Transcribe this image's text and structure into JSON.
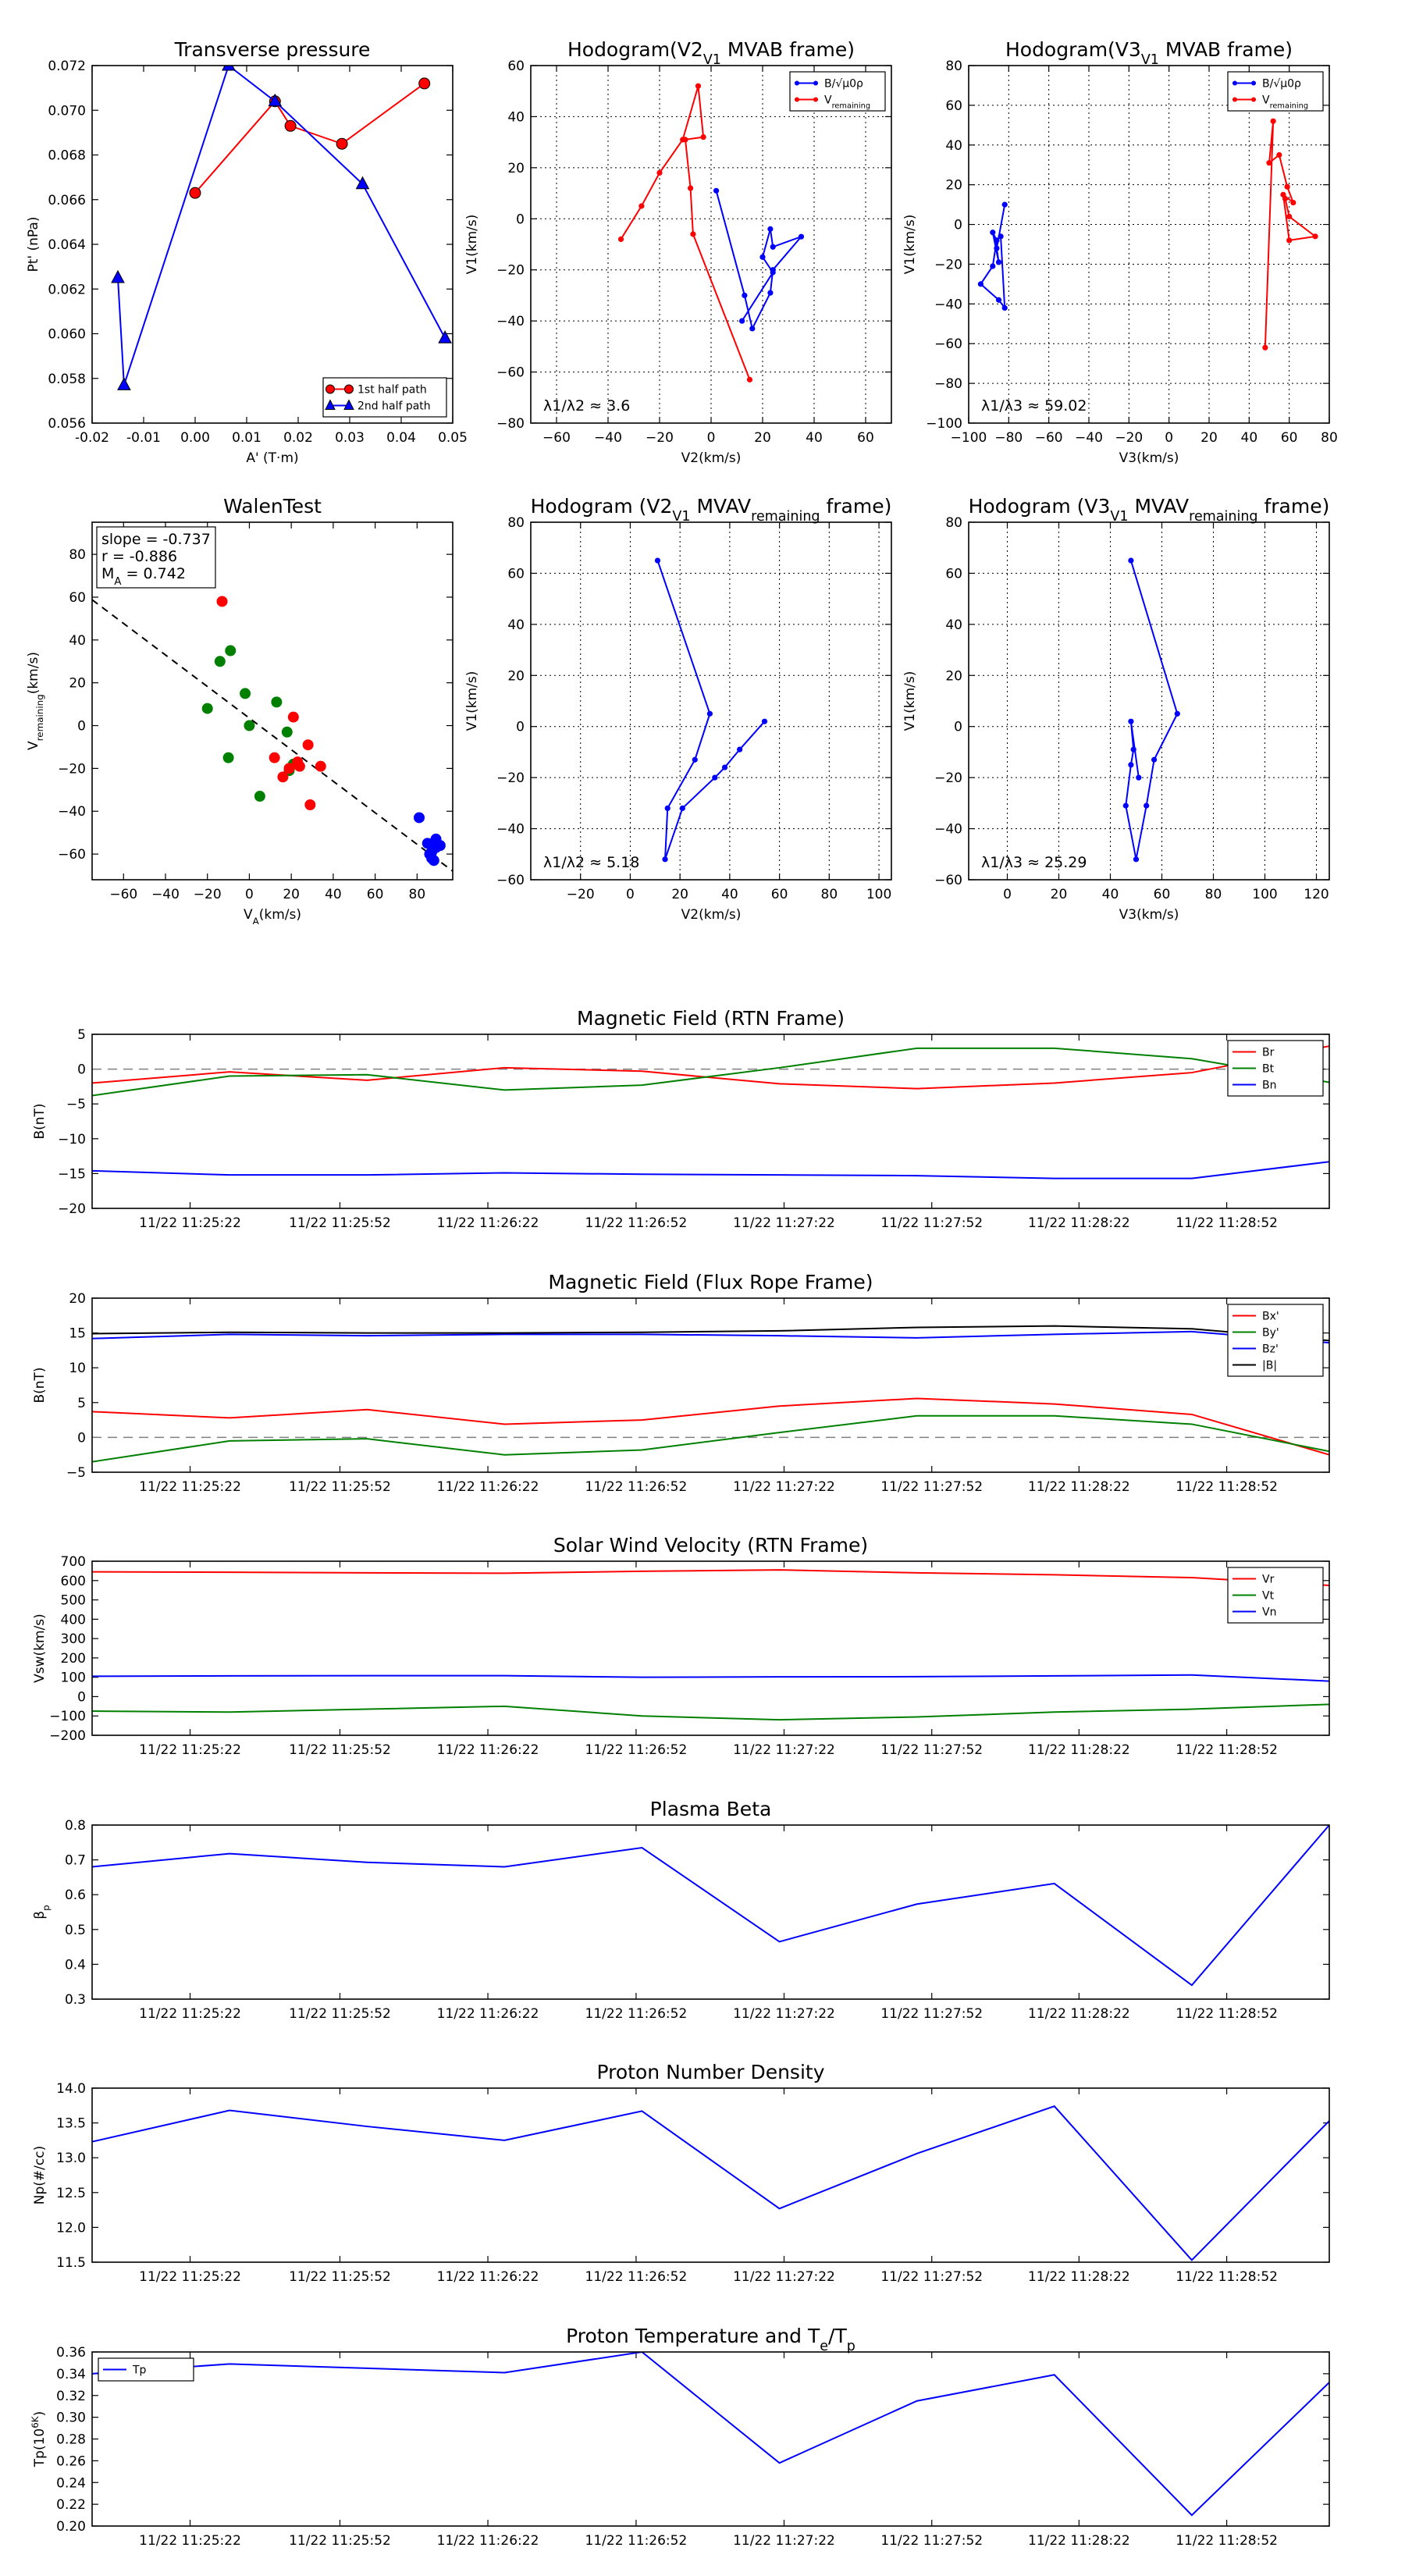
{
  "figure": {
    "background": "#ffffff"
  },
  "chart_data": [
    {
      "id": "transverse-pressure",
      "type": "line",
      "title": "Transverse pressure",
      "xlabel": "A' (T·m)",
      "ylabel": "Pt' (nPa)",
      "xlim": [
        -0.02,
        0.05
      ],
      "ylim": [
        0.056,
        0.072
      ],
      "xticks": [
        -0.02,
        -0.01,
        0.0,
        0.01,
        0.02,
        0.03,
        0.04,
        0.05
      ],
      "xticklabels": [
        "-0.02",
        "-0.01",
        "0.00",
        "0.01",
        "0.02",
        "0.03",
        "0.04",
        "0.05"
      ],
      "yticks": [
        0.056,
        0.058,
        0.06,
        0.062,
        0.064,
        0.066,
        0.068,
        0.07,
        0.072
      ],
      "yticklabels": [
        "0.056",
        "0.058",
        "0.060",
        "0.062",
        "0.064",
        "0.066",
        "0.068",
        "0.070",
        "0.072"
      ],
      "grid": false,
      "legend": "lower-right",
      "series": [
        {
          "name": "1st half path",
          "color": "#ff0000",
          "marker": "circle",
          "x": [
            0.0,
            0.0155,
            0.0185,
            0.0285,
            0.0445
          ],
          "y": [
            0.0663,
            0.0704,
            0.0693,
            0.0685,
            0.0712
          ]
        },
        {
          "name": "2nd half path",
          "color": "#0000ff",
          "marker": "triangle",
          "x": [
            -0.015,
            -0.0138,
            0.0065,
            0.0155,
            0.0325,
            0.0485
          ],
          "y": [
            0.0625,
            0.0577,
            0.072,
            0.0704,
            0.0667,
            0.0598
          ]
        }
      ]
    },
    {
      "id": "hodogram-v2-v1-mvab",
      "type": "line",
      "title": "Hodogram(V2_V1 MVAB frame)",
      "xlabel": "V2(km/s)",
      "ylabel": "V1(km/s)",
      "xlim": [
        -70,
        70
      ],
      "ylim": [
        -80,
        60
      ],
      "xticks": [
        -60,
        -40,
        -20,
        0,
        20,
        40,
        60
      ],
      "xticklabels": [
        "−60",
        "−40",
        "−20",
        "0",
        "20",
        "40",
        "60"
      ],
      "yticks": [
        -80,
        -60,
        -40,
        -20,
        0,
        20,
        40,
        60
      ],
      "yticklabels": [
        "−80",
        "−60",
        "−40",
        "−20",
        "0",
        "20",
        "40",
        "60"
      ],
      "grid": true,
      "legend": "top-right",
      "annotation": "λ1/λ2 ≈ 3.6",
      "series": [
        {
          "name": "B/√μ0ρ",
          "color": "#0000ff",
          "marker": "dot",
          "x": [
            2,
            13,
            16,
            23,
            24,
            35,
            24,
            23,
            20,
            24,
            12
          ],
          "y": [
            11,
            -30,
            -43,
            -29,
            -20,
            -7,
            -11,
            -4,
            -15,
            -21,
            -40
          ]
        },
        {
          "name": "V_remaining",
          "color": "#ff0000",
          "marker": "dot",
          "x": [
            -35,
            -27,
            -20,
            -11,
            -5,
            -3,
            -10,
            -8,
            -7,
            15
          ],
          "y": [
            -8,
            5,
            18,
            31,
            52,
            32,
            31,
            12,
            -6,
            -63
          ]
        }
      ]
    },
    {
      "id": "hodogram-v3-v1-mvab",
      "type": "line",
      "title": "Hodogram(V3_V1 MVAB frame)",
      "xlabel": "V3(km/s)",
      "ylabel": "V1(km/s)",
      "xlim": [
        -100,
        80
      ],
      "ylim": [
        -100,
        80
      ],
      "xticks": [
        -100,
        -80,
        -60,
        -40,
        -20,
        0,
        20,
        40,
        60,
        80
      ],
      "xticklabels": [
        "−100",
        "−80",
        "−60",
        "−40",
        "−20",
        "0",
        "20",
        "40",
        "60",
        "80"
      ],
      "yticks": [
        -100,
        -80,
        -60,
        -40,
        -20,
        0,
        20,
        40,
        60,
        80
      ],
      "yticklabels": [
        "−100",
        "−80",
        "−60",
        "−40",
        "−20",
        "0",
        "20",
        "40",
        "60",
        "80"
      ],
      "grid": true,
      "legend": "top-right",
      "annotation": "λ1/λ3 ≈ 59.02",
      "series": [
        {
          "name": "B/√μ0ρ",
          "color": "#0000ff",
          "marker": "dot",
          "x": [
            -82,
            -86,
            -85,
            -88,
            -86,
            -88,
            -94,
            -85,
            -82,
            -84
          ],
          "y": [
            10,
            -12,
            -19,
            -4,
            -8,
            -21,
            -30,
            -38,
            -42,
            -6
          ]
        },
        {
          "name": "V_remaining",
          "color": "#ff0000",
          "marker": "dot",
          "x": [
            48,
            52,
            50,
            55,
            59,
            62,
            57,
            60,
            73,
            60,
            58
          ],
          "y": [
            -62,
            52,
            31,
            35,
            19,
            11,
            15,
            -8,
            -6,
            4,
            13
          ]
        }
      ]
    },
    {
      "id": "walen-test",
      "type": "scatter",
      "title": "WalenTest",
      "xlabel": "V_A(km/s)",
      "ylabel": "V_remaining(km/s)",
      "xlim": [
        -75,
        97
      ],
      "ylim": [
        -72,
        95
      ],
      "xticks": [
        -60,
        -40,
        -20,
        0,
        20,
        40,
        60,
        80
      ],
      "xticklabels": [
        "−60",
        "−40",
        "−20",
        "0",
        "20",
        "40",
        "60",
        "80"
      ],
      "yticks": [
        -60,
        -40,
        -20,
        0,
        20,
        40,
        60,
        80
      ],
      "yticklabels": [
        "−60",
        "−40",
        "−20",
        "0",
        "20",
        "40",
        "60",
        "80"
      ],
      "grid": false,
      "legend": "none",
      "stats": [
        "slope = -0.737",
        "r = -0.886",
        "M_A = 0.742"
      ],
      "fit": {
        "slope": -0.737,
        "intercept": 3.5,
        "color": "#000000",
        "style": "dashed"
      },
      "series": [
        {
          "name": "",
          "color": "#008000",
          "x": [
            -20,
            -14,
            -9,
            -2,
            0,
            5,
            13,
            18,
            19,
            21,
            -10
          ],
          "y": [
            8,
            30,
            35,
            15,
            0,
            -33,
            11,
            -3,
            -21,
            -18,
            -15
          ]
        },
        {
          "name": "",
          "color": "#ff0000",
          "x": [
            -13,
            12,
            16,
            19,
            21,
            23,
            24,
            28,
            29,
            34
          ],
          "y": [
            58,
            -15,
            -24,
            -20,
            4,
            -17,
            -19,
            -9,
            -37,
            -19
          ]
        },
        {
          "name": "",
          "color": "#0000ff",
          "x": [
            81,
            85,
            87,
            89,
            86,
            87,
            88,
            91,
            89
          ],
          "y": [
            -43,
            -55,
            -59,
            -53,
            -60,
            -62,
            -63,
            -56,
            -57
          ]
        }
      ]
    },
    {
      "id": "hodogram-v2-v1-mvav",
      "type": "line",
      "title": "Hodogram (V2_V1 MVAV_remaining frame)",
      "xlabel": "V2(km/s)",
      "ylabel": "V1(km/s)",
      "xlim": [
        -40,
        105
      ],
      "ylim": [
        -60,
        80
      ],
      "xticks": [
        -20,
        0,
        20,
        40,
        60,
        80,
        100
      ],
      "xticklabels": [
        "−20",
        "0",
        "20",
        "40",
        "60",
        "80",
        "100"
      ],
      "yticks": [
        -60,
        -40,
        -20,
        0,
        20,
        40,
        60,
        80
      ],
      "yticklabels": [
        "−60",
        "−40",
        "−20",
        "0",
        "20",
        "40",
        "60",
        "80"
      ],
      "grid": true,
      "legend": "none",
      "annotation": "λ1/λ2 ≈ 5.18",
      "series": [
        {
          "name": "",
          "color": "#0000ff",
          "marker": "dot",
          "x": [
            11,
            32,
            26,
            15,
            14,
            21,
            34,
            38,
            44,
            54
          ],
          "y": [
            65,
            5,
            -13,
            -32,
            -52,
            -32,
            -20,
            -16,
            -9,
            2
          ]
        }
      ]
    },
    {
      "id": "hodogram-v3-v1-mvav",
      "type": "line",
      "title": "Hodogram (V3_V1 MVAV_remaining frame)",
      "xlabel": "V3(km/s)",
      "ylabel": "V1(km/s)",
      "xlim": [
        -15,
        125
      ],
      "ylim": [
        -60,
        80
      ],
      "xticks": [
        0,
        20,
        40,
        60,
        80,
        100,
        120
      ],
      "xticklabels": [
        "0",
        "20",
        "40",
        "60",
        "80",
        "100",
        "120"
      ],
      "yticks": [
        -60,
        -40,
        -20,
        0,
        20,
        40,
        60,
        80
      ],
      "yticklabels": [
        "−60",
        "−40",
        "−20",
        "0",
        "20",
        "40",
        "60",
        "80"
      ],
      "grid": true,
      "legend": "none",
      "annotation": "λ1/λ3 ≈ 25.29",
      "series": [
        {
          "name": "",
          "color": "#0000ff",
          "marker": "dot",
          "x": [
            48,
            66,
            57,
            54,
            50,
            46,
            48,
            49,
            48,
            51
          ],
          "y": [
            65,
            5,
            -13,
            -31,
            -52,
            -31,
            -15,
            -9,
            2,
            -20
          ]
        }
      ]
    },
    {
      "id": "b-rtn",
      "type": "line",
      "title": "Magnetic Field (RTN Frame)",
      "xlabel": "",
      "ylabel": "B(nT)",
      "time_labels": [
        "11/22 11:25:22",
        "11/22 11:25:52",
        "11/22 11:26:22",
        "11/22 11:26:52",
        "11/22 11:27:22",
        "11/22 11:27:52",
        "11/22 11:28:22",
        "11/22 11:28:52"
      ],
      "ylim": [
        -20,
        5
      ],
      "yticks": [
        -20,
        -15,
        -10,
        -5,
        0,
        5
      ],
      "yticklabels": [
        "−20",
        "−15",
        "−10",
        "−5",
        "0",
        "5"
      ],
      "zero_line": true,
      "grid": false,
      "legend": "top-right",
      "series": [
        {
          "name": "Br",
          "color": "#ff0000",
          "values": [
            -2,
            -0.4,
            -1.6,
            0.2,
            -0.3,
            -2.1,
            -2.8,
            -2.0,
            -0.5,
            3.3
          ]
        },
        {
          "name": "Bt",
          "color": "#008000",
          "values": [
            -3.8,
            -1.0,
            -0.8,
            -3.0,
            -2.3,
            0.2,
            3.0,
            3.0,
            1.5,
            -1.9
          ]
        },
        {
          "name": "Bn",
          "color": "#0000ff",
          "values": [
            -14.6,
            -15.2,
            -15.2,
            -14.9,
            -15.1,
            -15.2,
            -15.3,
            -15.7,
            -15.7,
            -13.3
          ]
        }
      ]
    },
    {
      "id": "b-flux-rope",
      "type": "line",
      "title": "Magnetic Field (Flux Rope Frame)",
      "xlabel": "",
      "ylabel": "B(nT)",
      "time_labels": [
        "11/22 11:25:22",
        "11/22 11:25:52",
        "11/22 11:26:22",
        "11/22 11:26:52",
        "11/22 11:27:22",
        "11/22 11:27:52",
        "11/22 11:28:22",
        "11/22 11:28:52"
      ],
      "ylim": [
        -5,
        20
      ],
      "yticks": [
        -5,
        0,
        5,
        10,
        15,
        20
      ],
      "yticklabels": [
        "−5",
        "0",
        "5",
        "10",
        "15",
        "20"
      ],
      "zero_line": true,
      "grid": false,
      "legend": "top-right",
      "series": [
        {
          "name": "Bx'",
          "color": "#ff0000",
          "values": [
            3.7,
            2.8,
            4.0,
            1.9,
            2.5,
            4.5,
            5.6,
            4.8,
            3.3,
            -2.5
          ]
        },
        {
          "name": "By'",
          "color": "#008000",
          "values": [
            -3.5,
            -0.5,
            -0.2,
            -2.5,
            -1.8,
            0.7,
            3.1,
            3.1,
            1.9,
            -2.0
          ]
        },
        {
          "name": "Bz'",
          "color": "#0000ff",
          "values": [
            14.2,
            14.8,
            14.6,
            14.8,
            14.8,
            14.6,
            14.3,
            14.8,
            15.2,
            13.6
          ]
        },
        {
          "name": "|B|",
          "color": "#000000",
          "values": [
            14.9,
            15.1,
            15.0,
            15.0,
            15.1,
            15.3,
            15.8,
            16.0,
            15.6,
            13.9
          ]
        }
      ]
    },
    {
      "id": "solar-wind-velocity",
      "type": "line",
      "title": "Solar Wind Velocity (RTN Frame)",
      "xlabel": "",
      "ylabel": "Vsw(km/s)",
      "time_labels": [
        "11/22 11:25:22",
        "11/22 11:25:52",
        "11/22 11:26:22",
        "11/22 11:26:52",
        "11/22 11:27:22",
        "11/22 11:27:52",
        "11/22 11:28:22",
        "11/22 11:28:52"
      ],
      "ylim": [
        -200,
        700
      ],
      "yticks": [
        -200,
        -100,
        0,
        100,
        200,
        300,
        400,
        500,
        600,
        700
      ],
      "yticklabels": [
        "−200",
        "−100",
        "0",
        "100",
        "200",
        "300",
        "400",
        "500",
        "600",
        "700"
      ],
      "zero_line": false,
      "grid": false,
      "legend": "top-right",
      "series": [
        {
          "name": "Vr",
          "color": "#ff0000",
          "values": [
            645,
            643,
            640,
            638,
            648,
            655,
            640,
            630,
            615,
            575
          ]
        },
        {
          "name": "Vt",
          "color": "#008000",
          "values": [
            -75,
            -80,
            -65,
            -50,
            -100,
            -120,
            -105,
            -80,
            -65,
            -40
          ]
        },
        {
          "name": "Vn",
          "color": "#0000ff",
          "values": [
            105,
            107,
            108,
            108,
            100,
            102,
            103,
            107,
            112,
            80
          ]
        }
      ]
    },
    {
      "id": "plasma-beta",
      "type": "line",
      "title": "Plasma Beta",
      "xlabel": "",
      "ylabel": "β_p",
      "time_labels": [
        "11/22 11:25:22",
        "11/22 11:25:52",
        "11/22 11:26:22",
        "11/22 11:26:52",
        "11/22 11:27:22",
        "11/22 11:27:52",
        "11/22 11:28:22",
        "11/22 11:28:52"
      ],
      "ylim": [
        0.3,
        0.8
      ],
      "yticks": [
        0.3,
        0.4,
        0.5,
        0.6,
        0.7,
        0.8
      ],
      "yticklabels": [
        "0.3",
        "0.4",
        "0.5",
        "0.6",
        "0.7",
        "0.8"
      ],
      "zero_line": false,
      "grid": false,
      "legend": "none",
      "series": [
        {
          "name": "",
          "color": "#0000ff",
          "values": [
            0.68,
            0.718,
            0.693,
            0.68,
            0.735,
            0.465,
            0.573,
            0.632,
            0.34,
            0.8
          ]
        }
      ]
    },
    {
      "id": "proton-density",
      "type": "line",
      "title": "Proton Number Density",
      "xlabel": "",
      "ylabel": "Np(#/cc)",
      "time_labels": [
        "11/22 11:25:22",
        "11/22 11:25:52",
        "11/22 11:26:22",
        "11/22 11:26:52",
        "11/22 11:27:22",
        "11/22 11:27:52",
        "11/22 11:28:22",
        "11/22 11:28:52"
      ],
      "ylim": [
        11.5,
        14.0
      ],
      "yticks": [
        11.5,
        12.0,
        12.5,
        13.0,
        13.5,
        14.0
      ],
      "yticklabels": [
        "11.5",
        "12.0",
        "12.5",
        "13.0",
        "13.5",
        "14.0"
      ],
      "zero_line": false,
      "grid": false,
      "legend": "none",
      "series": [
        {
          "name": "",
          "color": "#0000ff",
          "values": [
            13.23,
            13.68,
            13.45,
            13.25,
            13.67,
            12.27,
            13.06,
            13.74,
            11.53,
            13.53
          ]
        }
      ]
    },
    {
      "id": "proton-temperature",
      "type": "line",
      "title": "Proton Temperature and T_e/T_p",
      "xlabel": "",
      "ylabel": "Tp(10^6K)",
      "time_labels": [
        "11/22 11:25:22",
        "11/22 11:25:52",
        "11/22 11:26:22",
        "11/22 11:26:52",
        "11/22 11:27:22",
        "11/22 11:27:52",
        "11/22 11:28:22",
        "11/22 11:28:52"
      ],
      "ylim": [
        0.2,
        0.36
      ],
      "yticks": [
        0.2,
        0.22,
        0.24,
        0.26,
        0.28,
        0.3,
        0.32,
        0.34,
        0.36
      ],
      "yticklabels": [
        "0.20",
        "0.22",
        "0.24",
        "0.26",
        "0.28",
        "0.30",
        "0.32",
        "0.34",
        "0.36"
      ],
      "zero_line": false,
      "grid": false,
      "legend": "top-left",
      "series": [
        {
          "name": "Tp",
          "color": "#0000ff",
          "values": [
            0.34,
            0.349,
            0.345,
            0.341,
            0.36,
            0.258,
            0.315,
            0.339,
            0.21,
            0.332
          ]
        }
      ]
    }
  ]
}
